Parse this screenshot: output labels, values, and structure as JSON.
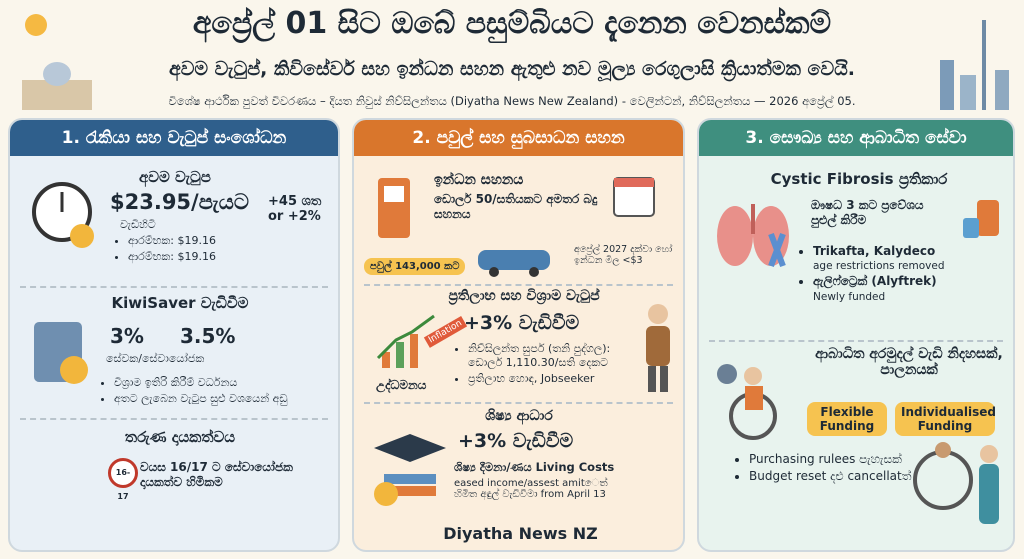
{
  "header": {
    "title": "අප්‍රේල් 01 සිට ඔබේ පසුම්බියට දැනෙන වෙනස්කම්",
    "subtitle": "අවම වැටුප්, කිවිසේවර් සහ ඉන්ධන සහන ඇතුළු නව මූල්‍ය රෙගුලාසි ක්‍රියාත්මක වෙයි.",
    "byline": "විශේෂ ආර්ථික පුවත් විවරණය – දියත නිවුස් නිව්සිලන්තය (Diyatha News New Zealand) - වෙලින්ටන්, නිව්සිලන්තය — 2026 අප්‍රේල් 05."
  },
  "columns": [
    {
      "heading": "1. රැකියා සහ වැටුප් සංශෝධන",
      "wage": {
        "title": "අවම වැටුප",
        "amount": "$23.95/පැයට",
        "note": "වැඩිහිටි",
        "change": "+45 ශත or +2%",
        "bullets": [
          "ආරම්භක: $19.16",
          "ආරම්භක: $19.16"
        ]
      },
      "kiwisaver": {
        "title": "KiwiSaver වැඩිවීම",
        "from": "3%",
        "to": "3.5%",
        "label": "සේවක/සේවායෝජක",
        "bullets": [
          "විශ්‍රාම ඉතිරි කිරීම් වර්ධනය",
          "අතට ලැබෙන වැටුප සුළු වශයෙන් අඩු"
        ]
      },
      "youth": {
        "title": "තරුණ දායකත්වය",
        "badge": "16-17",
        "text": "වයස 16/17 ට සේවායෝජක දායකත්ව හිමිකම"
      }
    },
    {
      "heading": "2. පවුල් සහ සුබසාධන සහන",
      "fuel": {
        "title": "ඉන්ධන සහනය",
        "text": "ඩොලර් 50/සතියකට අමතර බදු සහනය",
        "tag": "පවුල් 143,000 කට",
        "note": "අප්‍රේල් 2027 දක්වා හෝ ඉන්ධන මිල <$3"
      },
      "benefits": {
        "title": "ප්‍රතිලාභ සහ විශ්‍රාම වැටුප්",
        "big": "+3% වැඩිවීම",
        "sticker": "Inflation",
        "chart_label": "උද්ධමනය",
        "bullets": [
          "නිව්සිලන්ත සුපර් (තනි පුද්ගල): ඩොලර් 1,110.30/සති දෙකට",
          "ප්‍රතිලාභ හොඳ, Jobseeker"
        ]
      },
      "student": {
        "title": "ශිෂ්‍ය ආධාර",
        "big": "+3% වැඩිවීම",
        "text": "ශිෂ්‍ය දීමනා/ණය Living Costs",
        "text2": "eased income/assest amitෙත් හිමිත අඳුල් වැඩිවීමා from April 13"
      },
      "footer": "Diyatha News NZ"
    },
    {
      "heading": "3. සෞඛ්‍ය සහ ආබාධිත සේවා",
      "cf": {
        "title": "Cystic Fibrosis ප්‍රතිකාර",
        "text": "ඖෂධ 3 කට ප්‍රවේශය පුළුල් කිරීම",
        "items": [
          {
            "name": "Trikafta, Kalydeco",
            "sub": "age restrictions removed"
          },
          {
            "name": "ඇලිෆ්ට්‍රෙක් (Alyftrek)",
            "sub": "Newly funded"
          }
        ]
      },
      "disability": {
        "title": "ආබාධිත අරමුදල් වැඩි නිදහසක්, පාලනයක්",
        "tags": [
          "Flexible Funding",
          "Individualised Funding"
        ],
        "bullets": [
          "Purchasing rulees පැහැසක්",
          "Budget reset දළු cancellatත්"
        ]
      }
    }
  ]
}
